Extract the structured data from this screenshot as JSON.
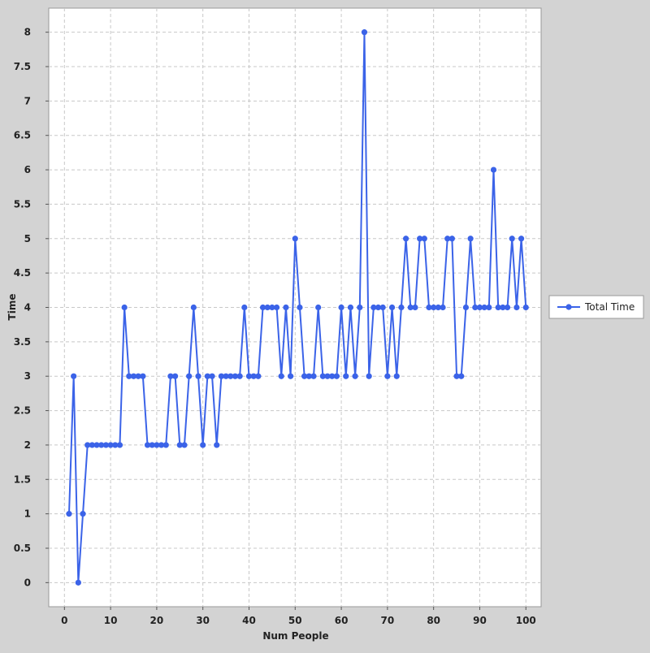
{
  "colors": {
    "background": "#d3d3d3",
    "plot_background": "#ffffff",
    "grid": "#c8c8c8",
    "series": "#3b63e8"
  },
  "chart_data": {
    "type": "line",
    "xlabel": "Num People",
    "ylabel": "Time",
    "xlim": [
      -3.4,
      103.3
    ],
    "ylim": [
      -0.35,
      8.35
    ],
    "xticks": [
      0,
      10,
      20,
      30,
      40,
      50,
      60,
      70,
      80,
      90,
      100
    ],
    "yticks": [
      0,
      0.5,
      1,
      1.5,
      2,
      2.5,
      3,
      3.5,
      4,
      4.5,
      5,
      5.5,
      6,
      6.5,
      7,
      7.5,
      8
    ],
    "grid": true,
    "legend_position": "right",
    "series": [
      {
        "name": "Total Time",
        "x": [
          1,
          2,
          3,
          4,
          5,
          6,
          7,
          8,
          9,
          10,
          11,
          12,
          13,
          14,
          15,
          16,
          17,
          18,
          19,
          20,
          21,
          22,
          23,
          24,
          25,
          26,
          27,
          28,
          29,
          30,
          31,
          32,
          33,
          34,
          35,
          36,
          37,
          38,
          39,
          40,
          41,
          42,
          43,
          44,
          45,
          46,
          47,
          48,
          49,
          50,
          51,
          52,
          53,
          54,
          55,
          56,
          57,
          58,
          59,
          60,
          61,
          62,
          63,
          64,
          65,
          66,
          67,
          68,
          69,
          70,
          71,
          72,
          73,
          74,
          75,
          76,
          77,
          78,
          79,
          80,
          81,
          82,
          83,
          84,
          85,
          86,
          87,
          88,
          89,
          90,
          91,
          92,
          93,
          94,
          95,
          96,
          97,
          98,
          99,
          100
        ],
        "y": [
          1,
          3,
          0,
          1,
          2,
          2,
          2,
          2,
          2,
          2,
          2,
          2,
          4,
          3,
          3,
          3,
          3,
          2,
          2,
          2,
          2,
          2,
          3,
          3,
          2,
          2,
          3,
          4,
          3,
          2,
          3,
          3,
          2,
          3,
          3,
          3,
          3,
          3,
          4,
          3,
          3,
          3,
          4,
          4,
          4,
          4,
          3,
          4,
          3,
          5,
          4,
          3,
          3,
          3,
          4,
          3,
          3,
          3,
          3,
          4,
          3,
          4,
          3,
          4,
          8,
          3,
          4,
          4,
          4,
          3,
          4,
          3,
          4,
          5,
          4,
          4,
          5,
          5,
          4,
          4,
          4,
          4,
          5,
          5,
          3,
          3,
          4,
          5,
          4,
          4,
          4,
          4,
          6,
          4,
          4,
          4,
          5,
          4,
          5,
          4
        ]
      }
    ]
  }
}
